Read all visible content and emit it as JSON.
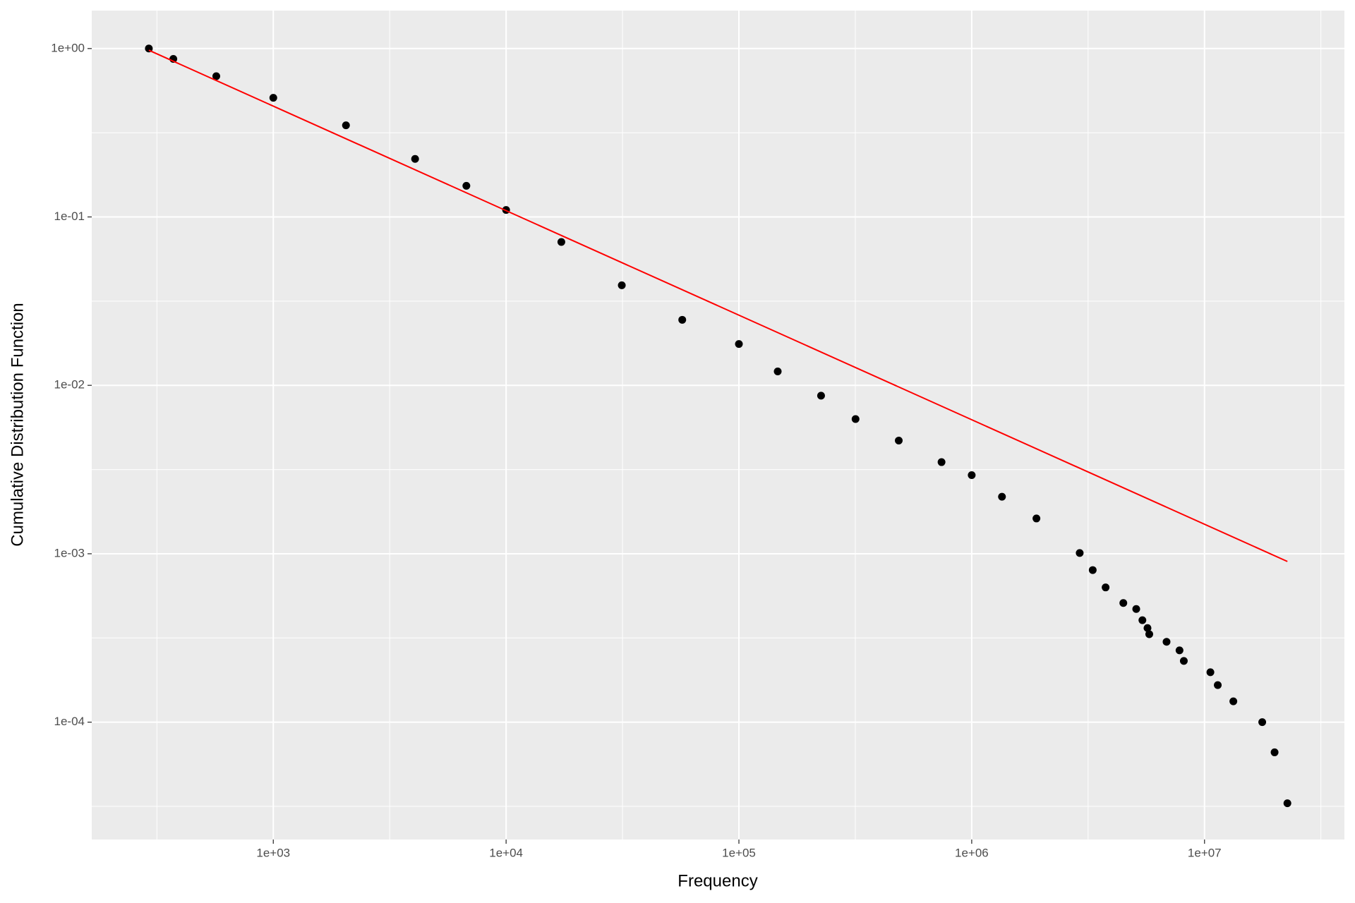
{
  "chart_data": {
    "type": "scatter",
    "x_label": "Frequency",
    "y_label": "Cumulative Distribution Function",
    "log_x": true,
    "log_y": true,
    "grid": true,
    "xlim": [
      166,
      39900000
    ],
    "ylim": [
      2.01e-05,
      1.68
    ],
    "xticks": [
      {
        "value": 1000,
        "label": "1e+03"
      },
      {
        "value": 10000,
        "label": "1e+04"
      },
      {
        "value": 100000,
        "label": "1e+05"
      },
      {
        "value": 1000000,
        "label": "1e+06"
      },
      {
        "value": 10000000,
        "label": "1e+07"
      }
    ],
    "yticks": [
      {
        "value": 0.0001,
        "label": "1e-04"
      },
      {
        "value": 0.001,
        "label": "1e-03"
      },
      {
        "value": 0.01,
        "label": "1e-02"
      },
      {
        "value": 0.1,
        "label": "1e-01"
      },
      {
        "value": 1,
        "label": "1e+00"
      }
    ],
    "xminor": [
      316.2,
      3162,
      31620,
      316200,
      3162000,
      31620000
    ],
    "yminor": [
      3.162e-05,
      0.0003162,
      0.003162,
      0.03162,
      0.3162
    ],
    "series": [
      {
        "type": "scatter",
        "color": "#000000",
        "x": [
          292,
          372,
          569,
          1000,
          2052,
          4065,
          6750,
          10000,
          17270,
          31400,
          57100,
          100000,
          146800,
          225400,
          317000,
          486000,
          742000,
          1000000,
          1349000,
          1897000,
          2910000,
          3310000,
          3760000,
          4480000,
          5090000,
          5410000,
          5690000,
          5790000,
          6870000,
          7810000,
          8150000,
          10600000,
          11400000,
          13300000,
          17700000,
          20000000,
          22700000
        ],
        "values": [
          1,
          0.868,
          0.685,
          0.51,
          0.35,
          0.221,
          0.153,
          0.11,
          0.071,
          0.0393,
          0.0245,
          0.0176,
          0.0121,
          0.00868,
          0.00631,
          0.0047,
          0.0035,
          0.00293,
          0.00218,
          0.00162,
          0.00101,
          0.0008,
          0.000631,
          0.00051,
          0.00047,
          0.000403,
          0.000362,
          0.000333,
          0.0003,
          0.000267,
          0.000231,
          0.000198,
          0.000166,
          0.000133,
          0.0001,
          6.62e-05,
          3.3e-05
        ]
      },
      {
        "type": "line",
        "color": "#ff0000",
        "x": [
          292,
          22700000
        ],
        "values": [
          0.977,
          0.0009
        ]
      }
    ]
  }
}
